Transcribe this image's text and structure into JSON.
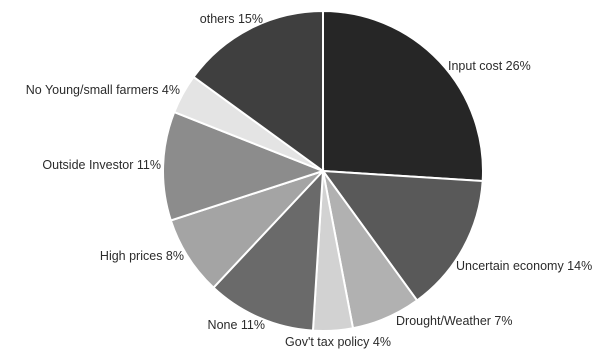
{
  "chart_data": {
    "type": "pie",
    "title": "",
    "slices": [
      {
        "label": "Input cost",
        "value": 26,
        "value_label": "26%",
        "color": "#262626"
      },
      {
        "label": "Uncertain economy",
        "value": 14,
        "value_label": "14%",
        "color": "#595959"
      },
      {
        "label": "Drought/Weather",
        "value": 7,
        "value_label": "7%",
        "color": "#b1b1b1"
      },
      {
        "label": "Gov't tax policy",
        "value": 4,
        "value_label": "4%",
        "color": "#d2d2d2"
      },
      {
        "label": "None",
        "value": 11,
        "value_label": "11%",
        "color": "#6a6a6a"
      },
      {
        "label": "High prices",
        "value": 8,
        "value_label": "8%",
        "color": "#a4a4a4"
      },
      {
        "label": "Outside Investor",
        "value": 11,
        "value_label": "11%",
        "color": "#8c8c8c"
      },
      {
        "label": "No Young/small farmers",
        "value": 4,
        "value_label": "4%",
        "color": "#e4e4e4"
      },
      {
        "label": "others",
        "value": 15,
        "value_label": "15%",
        "color": "#3f3f3f"
      }
    ]
  }
}
